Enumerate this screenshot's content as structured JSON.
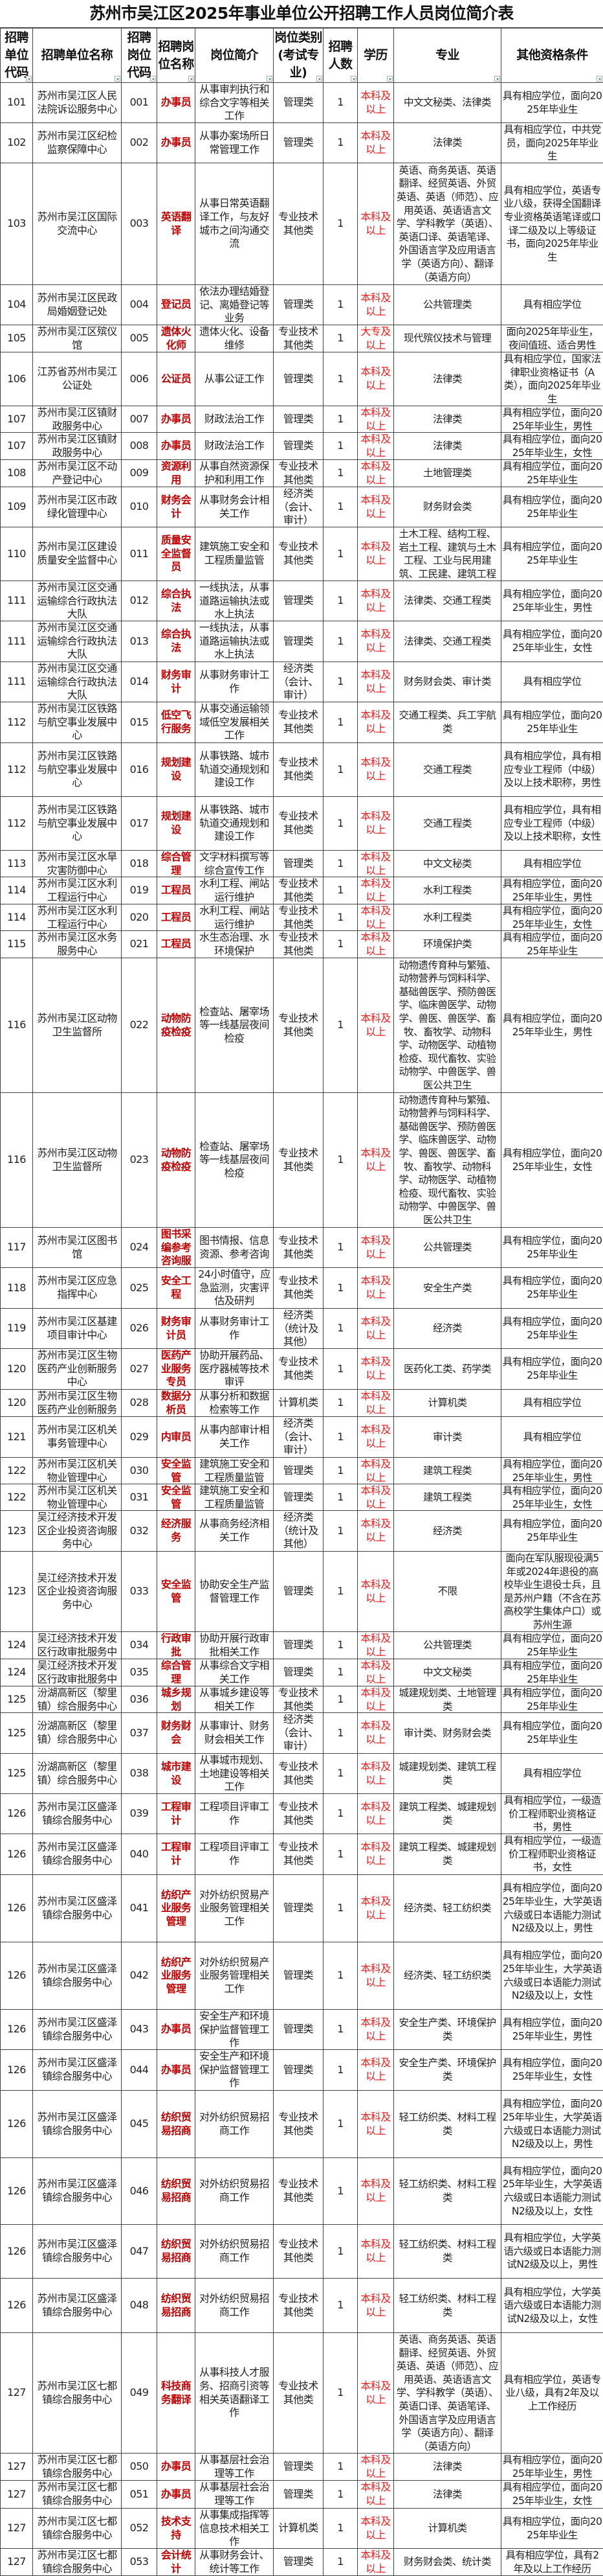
{
  "title": "苏州市吴江区2025年事业单位公开招聘工作人员岗位简介表",
  "headers": [
    "招聘单位代码",
    "招聘单位名称",
    "招聘岗位代码",
    "招聘岗位名称",
    "岗位简介",
    "岗位类别(考试专业)",
    "招聘人数",
    "学历",
    "专业",
    "其他资格条件"
  ],
  "colors": {
    "position_name": "#c00000",
    "education": "#ff1a1a",
    "border": "#444444"
  },
  "icons": {
    "header_filter": "filter-dropdown-icon"
  },
  "rows": [
    [
      "101",
      "苏州市吴江区人民法院诉讼服务中心",
      "001",
      "办事员",
      "从事审判执行和综合文字等相关工作",
      "管理类",
      "1",
      "本科及以上",
      "中文文秘类、法律类",
      "具有相应学位，面向2025年毕业生"
    ],
    [
      "102",
      "苏州市吴江区纪检监察保障中心",
      "002",
      "办事员",
      "从事办案场所日常管理工作",
      "管理类",
      "1",
      "本科及以上",
      "法律类",
      "具有相应学位，中共党员，面向2025年毕业生"
    ],
    [
      "103",
      "苏州市吴江区国际交流中心",
      "003",
      "英语翻译",
      "从事日常英语翻译工作，与友好城市之间沟通交流",
      "专业技术其他类",
      "1",
      "本科及以上",
      "英语、商务英语、英语翻译、经贸英语、外贸英语、英语（师范）、应用英语、英语语言文学、学科教学（英语）、英语口译、英语笔译、外国语言学及应用语言学（英语方向）、翻译（英语方向）",
      "具有相应学位，英语专业八级，获得全国翻译专业资格英语笔译或口译二级及以上等级证书，面向2025年毕业生"
    ],
    [
      "104",
      "苏州市吴江区民政局婚姻登记处",
      "004",
      "登记员",
      "依法办理结婚登记、离婚登记等业务",
      "管理类",
      "1",
      "本科及以上",
      "公共管理类",
      "具有相应学位"
    ],
    [
      "105",
      "苏州市吴江区殡仪馆",
      "005",
      "遗体火化师",
      "遗体火化、设备维修",
      "专业技术其他类",
      "1",
      "大专及以上",
      "现代殡仪技术与管理",
      "面向2025年毕业生，夜间值班、适合男性"
    ],
    [
      "106",
      "江苏省苏州市吴江公证处",
      "006",
      "公证员",
      "从事公证工作",
      "管理类",
      "1",
      "本科及以上",
      "法律类",
      "具有相应学位，国家法律职业资格证书（A类），面向2025年毕业生"
    ],
    [
      "107",
      "苏州市吴江区镇财政服务中心",
      "007",
      "办事员",
      "财政法治工作",
      "管理类",
      "1",
      "本科及以上",
      "法律类",
      "具有相应学位，面向2025年毕业生，男性"
    ],
    [
      "107",
      "苏州市吴江区镇财政服务中心",
      "008",
      "办事员",
      "财政法治工作",
      "管理类",
      "1",
      "本科及以上",
      "法律类",
      "具有相应学位，面向2025年毕业生，女性"
    ],
    [
      "108",
      "苏州市吴江区不动产登记中心",
      "009",
      "资源利用",
      "从事自然资源保护和利用工作",
      "专业技术其他类",
      "1",
      "本科及以上",
      "土地管理类",
      "具有相应学位，面向2025年毕业生"
    ],
    [
      "109",
      "苏州市吴江区市政绿化管理中心",
      "010",
      "财务会计",
      "从事财务会计相关工作",
      "经济类（会计、审计）",
      "1",
      "本科及以上",
      "财务财会类",
      "具有相应学位，面向2025年毕业生"
    ],
    [
      "110",
      "苏州市吴江区建设质量安全监督中心",
      "011",
      "质量安全监督员",
      "建筑施工安全和工程质量监管",
      "专业技术其他类",
      "1",
      "本科及以上",
      "土木工程、结构工程、岩土工程、建筑与土木工程、工业与民用建筑、工民建、建筑工程",
      "具有相应学位，面向2025年毕业生"
    ],
    [
      "111",
      "苏州市吴江区交通运输综合行政执法大队",
      "012",
      "综合执法",
      "一线执法，从事道路运输执法或水上执法",
      "管理类",
      "1",
      "本科及以上",
      "法律类、交通工程类",
      "具有相应学位，面向2025年毕业生，男性"
    ],
    [
      "111",
      "苏州市吴江区交通运输综合行政执法大队",
      "013",
      "综合执法",
      "一线执法，从事道路运输执法或水上执法",
      "管理类",
      "1",
      "本科及以上",
      "法律类、交通工程类",
      "具有相应学位，面向2025年毕业生，女性"
    ],
    [
      "111",
      "苏州市吴江区交通运输综合行政执法大队",
      "014",
      "财务审计",
      "从事财务审计工作",
      "经济类（会计、审计）",
      "1",
      "本科及以上",
      "财务财会类、审计类",
      "具有相应学位"
    ],
    [
      "112",
      "苏州市吴江区铁路与航空事业发展中心",
      "015",
      "低空飞行服务",
      "从事交通运输领域低空发展相关工作",
      "专业技术其他类",
      "1",
      "本科及以上",
      "交通工程类、兵工宇航类",
      "具有相应学位，面向2025年毕业生"
    ],
    [
      "112",
      "苏州市吴江区铁路与航空事业发展中心",
      "016",
      "规划建设",
      "从事铁路、城市轨道交通规划和建设工作",
      "专业技术其他类",
      "1",
      "本科及以上",
      "交通工程类",
      "具有相应学位，具有相应专业工程师（中级）及以上技术职称，男性"
    ],
    [
      "112",
      "苏州市吴江区铁路与航空事业发展中心",
      "017",
      "规划建设",
      "从事铁路、城市轨道交通规划和建设工作",
      "专业技术其他类",
      "1",
      "本科及以上",
      "交通工程类",
      "具有相应学位，具有相应专业工程师（中级）及以上技术职称，女性"
    ],
    [
      "113",
      "苏州市吴江区水旱灾害防御中心",
      "018",
      "综合管理",
      "文字材料撰写等综合宣传工作",
      "管理类",
      "1",
      "本科及以上",
      "中文文秘类",
      "具有相应学位"
    ],
    [
      "114",
      "苏州市吴江区水利工程运行中心",
      "019",
      "工程员",
      "水利工程、闸站运行维护",
      "专业技术其他类",
      "1",
      "本科及以上",
      "水利工程类",
      "具有相应学位，面向2025年毕业生，男性"
    ],
    [
      "114",
      "苏州市吴江区水利工程运行中心",
      "020",
      "工程员",
      "水利工程、闸站运行维护",
      "专业技术其他类",
      "1",
      "本科及以上",
      "水利工程类",
      "具有相应学位，面向2025年毕业生，女性"
    ],
    [
      "115",
      "苏州市吴江区水务服务中心",
      "021",
      "工程员",
      "水生态治理、水环境保护",
      "专业技术其他类",
      "1",
      "本科及以上",
      "环境保护类",
      "具有相应学位，面向2025年毕业生"
    ],
    [
      "116",
      "苏州市吴江区动物卫生监督所",
      "022",
      "动物防疫检疫",
      "检查站、屠宰场等一线基层夜间检疫",
      "专业技术其他类",
      "1",
      "本科及以上",
      "动物遗传育种与繁殖、动物营养与饲料科学、基础兽医学、预防兽医学、临床兽医学、动物学、兽医、兽医学、畜牧、畜牧学、动物科学、动物医学、动植物检疫、现代畜牧、实验动物学、中兽医学、兽医公共卫生",
      "具有相应学位，面向2025年毕业生，男性"
    ],
    [
      "116",
      "苏州市吴江区动物卫生监督所",
      "023",
      "动物防疫检疫",
      "检查站、屠宰场等一线基层夜间检疫",
      "专业技术其他类",
      "1",
      "本科及以上",
      "动物遗传育种与繁殖、动物营养与饲料科学、基础兽医学、预防兽医学、临床兽医学、动物学、兽医、兽医学、畜牧、畜牧学、动物科学、动物医学、动植物检疫、现代畜牧、实验动物学、中兽医学、兽医公共卫生",
      "具有相应学位，面向2025年毕业生，女性"
    ],
    [
      "117",
      "苏州市吴江区图书馆",
      "024",
      "图书采编参考咨询服",
      "图书情报、信息资源、参考咨询",
      "专业技术其他类",
      "1",
      "本科及以上",
      "公共管理类",
      "具有相应学位，面向2025年毕业生"
    ],
    [
      "118",
      "苏州市吴江区应急指挥中心",
      "025",
      "安全工程",
      "24小时值守，应急监测，灾害评估及研判",
      "专业技术其他类",
      "1",
      "本科及以上",
      "安全生产类",
      "具有相应学位，面向2025年毕业生"
    ],
    [
      "119",
      "苏州市吴江区基建项目审计中心",
      "026",
      "财务审计员",
      "从事财务审计工作",
      "经济类（统计及其他）",
      "1",
      "本科及以上",
      "经济类",
      "具有相应学位，面向2025年毕业生"
    ],
    [
      "120",
      "苏州市吴江区生物医药产业创新服务中心",
      "027",
      "医药产业服务专员",
      "协助开展药品、医疗器械等技术审评",
      "专业技术其他类",
      "1",
      "本科及以上",
      "医药化工类、药学类",
      "具有相应学位，面向2025年毕业生"
    ],
    [
      "120",
      "苏州市吴江区生物医药产业创新服务",
      "028",
      "数据分析员",
      "从事分析和数据检索等工作",
      "计算机类",
      "1",
      "本科及以上",
      "计算机类",
      "具有相应学位"
    ],
    [
      "121",
      "苏州市吴江区机关事务管理中心",
      "029",
      "内审员",
      "从事内部审计相关工作",
      "经济类（会计、审计）",
      "1",
      "本科及以上",
      "审计类",
      "具有相应学位"
    ],
    [
      "122",
      "苏州市吴江区机关物业管理中心",
      "030",
      "安全监管",
      "建筑施工安全和工程质量监管",
      "管理类",
      "1",
      "本科及以上",
      "建筑工程类",
      "具有相应学位，面向2025年毕业生，男性"
    ],
    [
      "122",
      "苏州市吴江区机关物业管理中心",
      "031",
      "安全监管",
      "建筑施工安全和工程质量监管",
      "管理类",
      "1",
      "本科及以上",
      "建筑工程类",
      "具有相应学位，面向2025年毕业生，女性"
    ],
    [
      "123",
      "吴江经济技术开发区企业投资咨询服务中心",
      "032",
      "经济服务",
      "从事商务经济相关工作",
      "经济类（统计及其他）",
      "1",
      "本科及以上",
      "经济类",
      "具有相应学位，面向2025年毕业生"
    ],
    [
      "123",
      "吴江经济技术开发区企业投资咨询服务中心",
      "033",
      "安全监管",
      "协助安全生产监督管理工作",
      "管理类",
      "1",
      "本科及以上",
      "不限",
      "面向在军队服现役满5年或2024年退役的高校毕业生退役士兵，且是苏州户籍（不含在苏高校学生集体户口）或苏州生源"
    ],
    [
      "124",
      "吴江经济技术开发区行政审批服务中",
      "034",
      "行政审批",
      "协助开展行政审批相关工作",
      "管理类",
      "1",
      "本科及以上",
      "公共管理类",
      "具有相应学位，面向2025年毕业生"
    ],
    [
      "124",
      "吴江经济技术开发区行政审批服务中",
      "035",
      "综合管理",
      "从事综合文字相关工作",
      "管理类",
      "1",
      "本科及以上",
      "中文文秘类",
      "具有相应学位，面向2025年毕业生"
    ],
    [
      "125",
      "汾湖高新区（黎里镇）综合服务中心",
      "036",
      "城乡规划",
      "从事城乡建设等相关工作",
      "专业技术其他类",
      "1",
      "本科及以上",
      "城建规划类、土地管理类",
      "具有相应学位，面向2025年毕业生"
    ],
    [
      "125",
      "汾湖高新区（黎里镇）综合服务中心",
      "037",
      "财务财会",
      "从事审计、财务财会相关工作",
      "经济类（会计、审计）",
      "1",
      "本科及以上",
      "审计类、财务财会类",
      "具有相应学位，面向2025年毕业生"
    ],
    [
      "125",
      "汾湖高新区（黎里镇）综合服务中心",
      "038",
      "城市建设",
      "从事城市规划、土地建设等相关工作",
      "专业技术其他类",
      "1",
      "本科及以上",
      "城建规划类、建筑工程类",
      "具有相应学位"
    ],
    [
      "126",
      "苏州市吴江区盛泽镇综合服务中心",
      "039",
      "工程审计",
      "工程项目评审工作",
      "专业技术其他类",
      "1",
      "本科及以上",
      "建筑工程类、城建规划类",
      "具有相应学位，一级造价工程师职业资格证书，男性"
    ],
    [
      "126",
      "苏州市吴江区盛泽镇综合服务中心",
      "040",
      "工程审计",
      "工程项目评审工作",
      "专业技术其他类",
      "1",
      "本科及以上",
      "建筑工程类、城建规划类",
      "具有相应学位，一级造价工程师职业资格证书，女性"
    ],
    [
      "126",
      "苏州市吴江区盛泽镇综合服务中心",
      "041",
      "纺织产业服务管理",
      "对外纺织贸易产业服务管理相关工作",
      "管理类",
      "1",
      "本科及以上",
      "经济类、轻工纺织类",
      "具有相应学位，面向2025年毕业生，大学英语六级或日本语能力测试N2级及以上，男性"
    ],
    [
      "126",
      "苏州市吴江区盛泽镇综合服务中心",
      "042",
      "纺织产业服务管理",
      "对外纺织贸易产业服务管理相关工作",
      "管理类",
      "1",
      "本科及以上",
      "经济类、轻工纺织类",
      "具有相应学位，面向2025年毕业生，大学英语六级或日本语能力测试N2级及以上，女性"
    ],
    [
      "126",
      "苏州市吴江区盛泽镇综合服务中心",
      "043",
      "办事员",
      "安全生产和环境保护监督管理工作",
      "管理类",
      "1",
      "本科及以上",
      "安全生产类、环境保护类",
      "具有相应学位，面向2025年毕业生，男性"
    ],
    [
      "126",
      "苏州市吴江区盛泽镇综合服务中心",
      "044",
      "办事员",
      "安全生产和环境保护监督管理工作",
      "管理类",
      "1",
      "本科及以上",
      "安全生产类、环境保护类",
      "具有相应学位，面向2025年毕业生，女性"
    ],
    [
      "126",
      "苏州市吴江区盛泽镇综合服务中心",
      "045",
      "纺织贸易招商",
      "对外纺织贸易招商工作",
      "专业技术其他类",
      "1",
      "本科及以上",
      "轻工纺织类、材料工程类",
      "具有相应学位，面向2025年毕业生，大学英语六级或日本语能力测试N2级及以上，男性"
    ],
    [
      "126",
      "苏州市吴江区盛泽镇综合服务中心",
      "046",
      "纺织贸易招商",
      "对外纺织贸易招商工作",
      "专业技术其他类",
      "1",
      "本科及以上",
      "轻工纺织类、材料工程类",
      "具有相应学位，面向2025年毕业生，大学英语六级或日本语能力测试N2级及以上，女性"
    ],
    [
      "126",
      "苏州市吴江区盛泽镇综合服务中心",
      "047",
      "纺织贸易招商",
      "对外纺织贸易招商工作",
      "专业技术其他类",
      "1",
      "本科及以上",
      "轻工纺织类、材料工程类",
      "具有相应学位，大学英语六级或日本语能力测试N2级及以上，男性"
    ],
    [
      "126",
      "苏州市吴江区盛泽镇综合服务中心",
      "048",
      "纺织贸易招商",
      "对外纺织贸易招商工作",
      "专业技术其他类",
      "1",
      "本科及以上",
      "轻工纺织类、材料工程类",
      "具有相应学位，大学英语六级或日本语能力测试N2级及以上，女性"
    ],
    [
      "127",
      "苏州市吴江区七都镇综合服务中心",
      "049",
      "科技商务翻译",
      "从事科技人才服务、招商引资等相关英语翻译工作",
      "专业技术其他类",
      "1",
      "本科及以上",
      "英语、商务英语、英语翻译、经贸英语、外贸英语、英语（师范）、应用英语、英语语言文学、学科教学（英语）、英语口译、英语笔译、外国语言学及应用语言学（英语方向）、翻译（英语方向）",
      "具有相应学位，英语专业八级，具有2年及以上工作经历"
    ],
    [
      "127",
      "苏州市吴江区七都镇综合服务中心",
      "050",
      "办事员",
      "从事基层社会治理等工作",
      "管理类",
      "1",
      "本科及以上",
      "法律类",
      "具有相应学位，面向2025年毕业生，男性"
    ],
    [
      "127",
      "苏州市吴江区七都镇综合服务中心",
      "051",
      "办事员",
      "从事基层社会治理等工作",
      "管理类",
      "1",
      "本科及以上",
      "法律类",
      "具有相应学位，面向2025年毕业生，女性"
    ],
    [
      "127",
      "苏州市吴江区七都镇综合服务中心",
      "052",
      "技术支持",
      "从事集成指挥等信息技术相关工作",
      "计算机类",
      "1",
      "本科及以上",
      "计算机类",
      "具有相应学位，面向2025年毕业生"
    ],
    [
      "127",
      "苏州市吴江区七都镇综合服务中心",
      "053",
      "会计统计",
      "从事财务会计、统计等工作",
      "管理类",
      "1",
      "本科及以上",
      "财务财会类、统计类",
      "具有相应学位，具有2年及以上工作经历"
    ]
  ]
}
